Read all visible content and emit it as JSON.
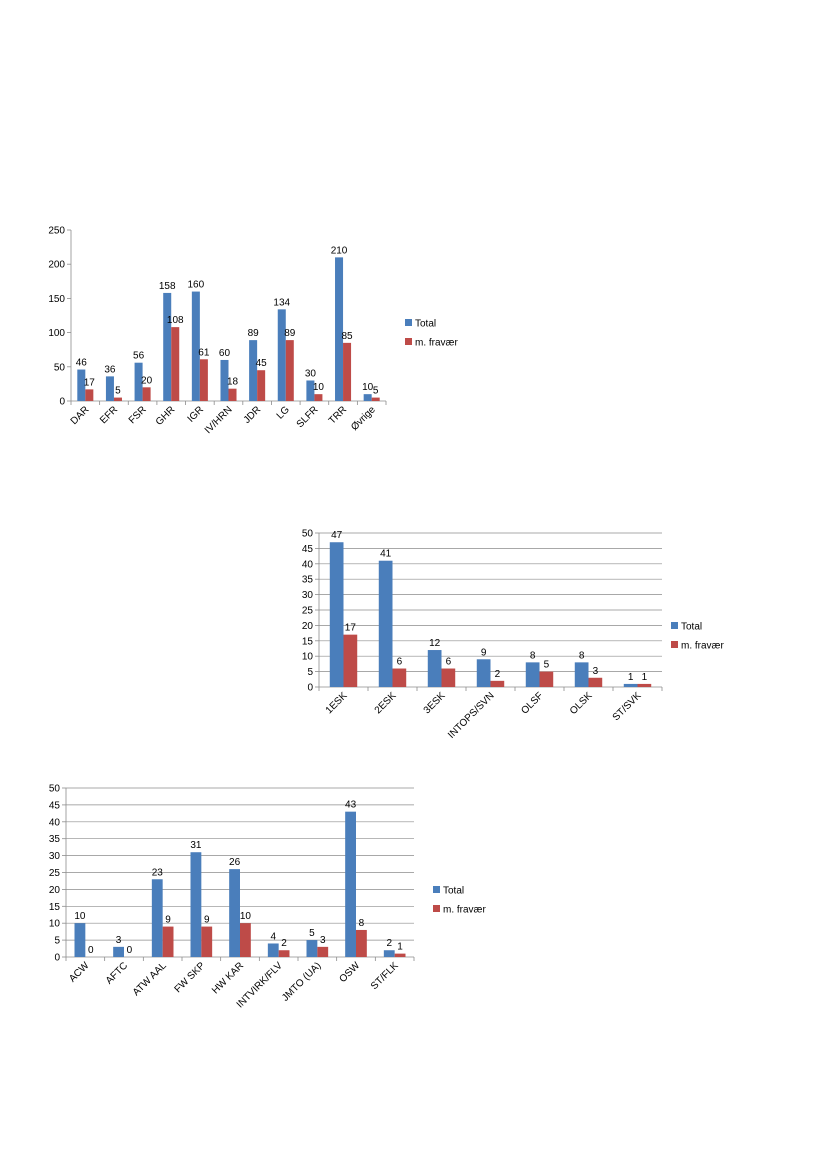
{
  "chart_data": [
    {
      "type": "bar",
      "categories": [
        "DAR",
        "EFR",
        "FSR",
        "GHR",
        "IGR",
        "IV/HRN",
        "JDR",
        "LG",
        "SLFR",
        "TRR",
        "Øvrige"
      ],
      "series": [
        {
          "name": "Total",
          "values": [
            46,
            36,
            56,
            158,
            160,
            60,
            89,
            134,
            30,
            210,
            10
          ],
          "color": "#4a7ebb"
        },
        {
          "name": "m. fravær",
          "values": [
            17,
            5,
            20,
            108,
            61,
            18,
            45,
            89,
            10,
            85,
            5
          ],
          "color": "#be4b48"
        }
      ],
      "ylim": [
        0,
        250
      ],
      "yticks": [
        0,
        50,
        100,
        150,
        200,
        250
      ],
      "grid": false,
      "legend": "right",
      "title": "",
      "xlabel": "",
      "ylabel": ""
    },
    {
      "type": "bar",
      "categories": [
        "1ESK",
        "2ESK",
        "3ESK",
        "INTOPS/SVN",
        "OLSF",
        "OLSK",
        "ST/SVK"
      ],
      "series": [
        {
          "name": "Total",
          "values": [
            47,
            41,
            12,
            9,
            8,
            8,
            1
          ],
          "color": "#4a7ebb"
        },
        {
          "name": "m. fravær",
          "values": [
            17,
            6,
            6,
            2,
            5,
            3,
            1
          ],
          "color": "#be4b48"
        }
      ],
      "ylim": [
        0,
        50
      ],
      "yticks": [
        0,
        5,
        10,
        15,
        20,
        25,
        30,
        35,
        40,
        45,
        50
      ],
      "grid": true,
      "legend": "right",
      "title": "",
      "xlabel": "",
      "ylabel": ""
    },
    {
      "type": "bar",
      "categories": [
        "ACW",
        "AFTC",
        "ATW AAL",
        "FW SKP",
        "HW KAR",
        "INTVIRK/FLV",
        "JMTO (UA)",
        "OSW",
        "ST/FLK"
      ],
      "series": [
        {
          "name": "Total",
          "values": [
            10,
            3,
            23,
            31,
            26,
            4,
            5,
            43,
            2
          ],
          "color": "#4a7ebb"
        },
        {
          "name": "m. fravær",
          "values": [
            0,
            0,
            9,
            9,
            10,
            2,
            3,
            8,
            1
          ],
          "color": "#be4b48"
        }
      ],
      "ylim": [
        0,
        50
      ],
      "yticks": [
        0,
        5,
        10,
        15,
        20,
        25,
        30,
        35,
        40,
        45,
        50
      ],
      "grid": true,
      "legend": "right",
      "title": "",
      "xlabel": "",
      "ylabel": ""
    }
  ]
}
